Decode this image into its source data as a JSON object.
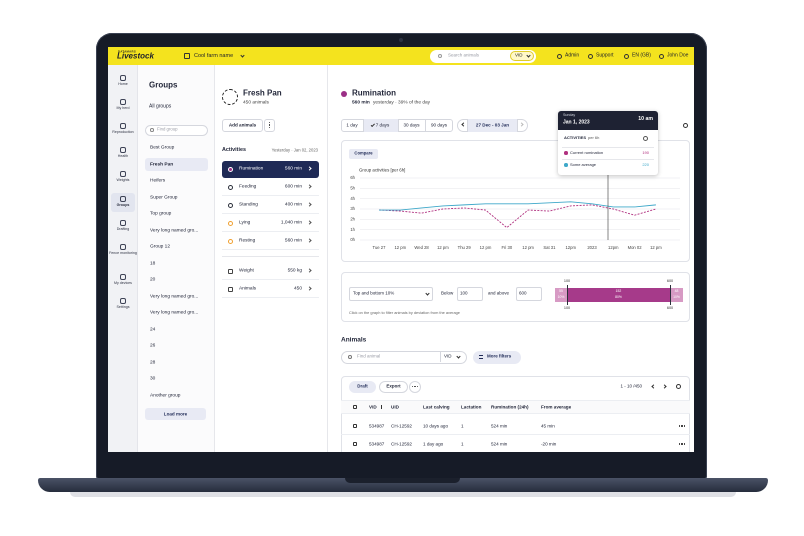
{
  "topbar": {
    "brand_small": "DATAMARS",
    "brand": "Livestock",
    "farm": "Cool farm name",
    "search": "Search animals",
    "search_field": "VID",
    "links": [
      "Admin",
      "Support",
      "EN (GB)",
      "John Doe"
    ]
  },
  "nav": [
    "Home",
    "My herd",
    "Reproduction",
    "Health",
    "Weights",
    "Groups",
    "Drafting",
    "Fence monitoring",
    "My devices",
    "Settings"
  ],
  "groups": {
    "title": "Groups",
    "all": "All groups",
    "search": "Find group",
    "items": [
      "Best Group",
      "Fresh Pan",
      "Heifers",
      "Super Group",
      "Top group",
      "Very long named gro...",
      "Group 12",
      "18",
      "20",
      "Very long named gro...",
      "Very long named gro...",
      "24",
      "26",
      "28",
      "30",
      "Another group"
    ],
    "load_more": "Load more"
  },
  "detail": {
    "name": "Fresh Pan",
    "count": "450 animals",
    "add": "Add animals",
    "activities_title": "Activities",
    "activities_date": "Yesterday · Jan 02, 2023",
    "activities": [
      {
        "label": "Rumination",
        "value": "560 min",
        "color": "#9b2f86"
      },
      {
        "label": "Feeding",
        "value": "600 min",
        "color": "#2b2f3a"
      },
      {
        "label": "Standing",
        "value": "400 min",
        "color": "#2b2f3a"
      },
      {
        "label": "Lying",
        "value": "1,040 min",
        "color": "#f0a030"
      },
      {
        "label": "Resting",
        "value": "560 min",
        "color": "#f0a030"
      }
    ],
    "metrics": [
      {
        "label": "Weight",
        "value": "550 kg"
      },
      {
        "label": "Animals",
        "value": "450"
      }
    ]
  },
  "main": {
    "title": "Rumination",
    "subtitle_value": "560 min",
    "subtitle_rest": "yesterday · 39% of the day",
    "ranges": [
      {
        "label": "1 day",
        "selected": false
      },
      {
        "label": "7 days",
        "selected": true
      },
      {
        "label": "30 days",
        "selected": false
      },
      {
        "label": "90 days",
        "selected": false
      }
    ],
    "date_range": "27 Dec - 03 Jan"
  },
  "chart": {
    "type": "line",
    "compare": "Compare",
    "title": "Group activities [per 6h]",
    "categories": [
      "Tue 27",
      "12 pm",
      "Wed 28",
      "12 pm",
      "Thu 29",
      "12 pm",
      "Fri 30",
      "12 pm",
      "Sat 31",
      "12pm",
      "2023",
      "12pm",
      "Mon 02",
      "12 pm"
    ],
    "ylim": [
      0,
      6
    ],
    "yticks": [
      {
        "value": 0,
        "label": "0h"
      },
      {
        "value": 1,
        "label": "1h"
      },
      {
        "value": 2,
        "label": "2h"
      },
      {
        "value": 3,
        "label": "3h"
      },
      {
        "value": 4,
        "label": "4h"
      },
      {
        "value": 5,
        "label": "5h"
      },
      {
        "value": 6,
        "label": "6h"
      }
    ],
    "grid": true,
    "series": [
      {
        "name": "Current rumination",
        "color": "#b0307f",
        "dashed": true,
        "values": [
          2.9,
          2.8,
          2.6,
          3.0,
          3.1,
          2.9,
          1.2,
          2.9,
          2.8,
          3.3,
          3.4,
          3.0,
          2.4,
          3.0
        ]
      },
      {
        "name": "Some average",
        "color": "#3ea8c9",
        "dashed": false,
        "values": [
          2.9,
          2.9,
          3.1,
          3.3,
          3.4,
          3.5,
          3.5,
          3.5,
          3.6,
          3.7,
          3.5,
          3.2,
          3.2,
          3.4
        ]
      }
    ],
    "tooltip": {
      "day": "Sunday",
      "date": "Jan 1, 2023",
      "time": "10 am",
      "heading": "ACTIVITIES",
      "heading_unit": "per 6h",
      "values": [
        190,
        220
      ]
    }
  },
  "filter": {
    "mode": "Top and bottom 10%",
    "below_label": "Below",
    "below": "100",
    "above_label": "and above",
    "above": "600",
    "hint": "Click on the graph to filter animals by deviation from the average",
    "scale_low": "100",
    "scale_high": "600",
    "segments": [
      {
        "count": "55",
        "share": "10%"
      },
      {
        "count": "152",
        "share": "80%"
      },
      {
        "count": "48",
        "share": "10%"
      }
    ]
  },
  "animals": {
    "title": "Animals",
    "search": "Find animal",
    "search_field": "VID",
    "more_filters": "More filters",
    "draft": "Draft",
    "export": "Export",
    "pagination": "1 - 10 /450",
    "columns": [
      "VID",
      "UID",
      "Last calving",
      "Lactation",
      "Rumination (24h)",
      "From average"
    ],
    "rows": [
      [
        "534987",
        "CH-12592",
        "10 days ago",
        "1",
        "524 min",
        "45 min"
      ],
      [
        "534987",
        "CH-12592",
        "1 day ago",
        "1",
        "524 min",
        "-20 min"
      ]
    ]
  }
}
